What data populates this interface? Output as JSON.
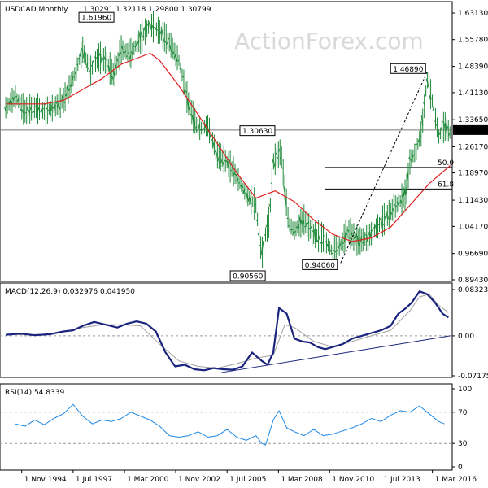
{
  "chart_data": [
    {
      "panel": "price",
      "type": "bar",
      "title": "USDCAD,Monthly",
      "ohlc_label": "1.30291 1.32118 1.29800 1.30799",
      "watermark": "ActionForex.com",
      "yticks": [
        "1.63130",
        "1.55780",
        "1.48390",
        "1.41130",
        "1.33650",
        "1.26170",
        "1.18970",
        "1.11430",
        "1.04170",
        "0.96690",
        "0.89430"
      ],
      "ylim": [
        0.8943,
        1.6313
      ],
      "current_price": "1.30799",
      "labels": [
        {
          "text": "1.61960",
          "date": 2000.0,
          "value": 1.6196
        },
        {
          "text": "1.30630",
          "date": 2007.9,
          "value": 1.3063
        },
        {
          "text": "0.90560",
          "date": 2007.4,
          "value": 0.9056
        },
        {
          "text": "0.94060",
          "date": 2011.4,
          "value": 0.9406
        },
        {
          "text": "1.46890",
          "date": 2015.9,
          "value": 1.4689
        }
      ],
      "fib_levels": [
        {
          "label": "50.0",
          "value": 1.2048
        },
        {
          "label": "61.8",
          "value": 1.145
        }
      ],
      "trendline": {
        "from": {
          "date": 2011.4,
          "value": 0.9406
        },
        "to": {
          "date": 2015.9,
          "value": 1.4689
        }
      },
      "price_series": {
        "x": [
          1994.0,
          1994.5,
          1995.0,
          1995.5,
          1996.0,
          1996.5,
          1997.0,
          1997.5,
          1998.0,
          1998.4,
          1998.8,
          1999.2,
          1999.6,
          2000.0,
          2000.5,
          2001.0,
          2001.5,
          2002.0,
          2002.5,
          2003.0,
          2003.5,
          2004.0,
          2004.5,
          2005.0,
          2005.5,
          2006.0,
          2006.5,
          2007.0,
          2007.3,
          2007.5,
          2007.7,
          2007.9,
          2008.3,
          2008.7,
          2009.0,
          2009.5,
          2010.0,
          2010.5,
          2011.0,
          2011.4,
          2011.8,
          2012.3,
          2012.8,
          2013.3,
          2013.8,
          2014.3,
          2014.8,
          2015.0,
          2015.3,
          2015.6,
          2015.9,
          2016.2,
          2016.5,
          2016.8,
          2017.1
        ],
        "y": [
          1.37,
          1.4,
          1.36,
          1.37,
          1.36,
          1.37,
          1.39,
          1.45,
          1.53,
          1.47,
          1.51,
          1.5,
          1.46,
          1.53,
          1.52,
          1.56,
          1.6,
          1.58,
          1.55,
          1.5,
          1.38,
          1.31,
          1.32,
          1.24,
          1.22,
          1.18,
          1.13,
          1.1,
          0.96,
          1.02,
          1.06,
          1.22,
          1.25,
          1.05,
          1.03,
          1.06,
          1.02,
          1.01,
          0.97,
          0.99,
          1.03,
          1.0,
          1.01,
          1.04,
          1.07,
          1.1,
          1.13,
          1.22,
          1.25,
          1.3,
          1.45,
          1.38,
          1.29,
          1.32,
          1.3
        ]
      },
      "ma_series": {
        "x": [
          1994.0,
          1995.0,
          1996.0,
          1997.0,
          1998.0,
          1999.0,
          2000.0,
          2001.0,
          2001.5,
          2002.0,
          2003.0,
          2004.0,
          2005.0,
          2006.0,
          2007.0,
          2008.0,
          2009.0,
          2010.0,
          2011.0,
          2012.0,
          2013.0,
          2014.0,
          2015.0,
          2016.0,
          2017.1
        ],
        "y": [
          1.38,
          1.38,
          1.38,
          1.39,
          1.42,
          1.45,
          1.49,
          1.51,
          1.52,
          1.5,
          1.43,
          1.35,
          1.27,
          1.19,
          1.12,
          1.14,
          1.11,
          1.06,
          1.02,
          1.0,
          1.01,
          1.04,
          1.1,
          1.16,
          1.21
        ]
      }
    },
    {
      "panel": "macd",
      "type": "line",
      "title": "MACD(12,26,9) 0.032976 0.041950",
      "yticks": [
        "0.083235",
        "0.00",
        "-0.071752"
      ],
      "ylim": [
        -0.071752,
        0.083235
      ],
      "series": [
        {
          "x": [
            1994.0,
            1994.8,
            1995.5,
            1996.3,
            1997.0,
            1997.5,
            1998.0,
            1998.6,
            1999.2,
            1999.8,
            2000.3,
            2000.8,
            2001.3,
            2001.8,
            2002.3,
            2002.8,
            2003.3,
            2003.8,
            2004.3,
            2004.8,
            2005.3,
            2005.8,
            2006.3,
            2006.8,
            2007.3,
            2007.6,
            2007.9,
            2008.2,
            2008.6,
            2009.0,
            2009.4,
            2009.8,
            2010.2,
            2010.6,
            2011.0,
            2011.5,
            2012.0,
            2012.5,
            2013.0,
            2013.5,
            2014.0,
            2014.4,
            2014.8,
            2015.1,
            2015.5,
            2015.9,
            2016.3,
            2016.7,
            2017.0
          ],
          "y": [
            0.002,
            0.004,
            0.001,
            0.003,
            0.008,
            0.01,
            0.018,
            0.025,
            0.02,
            0.015,
            0.022,
            0.026,
            0.022,
            0.008,
            -0.03,
            -0.055,
            -0.052,
            -0.06,
            -0.062,
            -0.058,
            -0.06,
            -0.061,
            -0.055,
            -0.03,
            -0.045,
            -0.052,
            -0.03,
            0.05,
            0.04,
            -0.005,
            -0.01,
            -0.012,
            -0.02,
            -0.024,
            -0.02,
            -0.015,
            -0.005,
            0.0,
            0.005,
            0.01,
            0.018,
            0.04,
            0.05,
            0.06,
            0.08,
            0.075,
            0.06,
            0.04,
            0.033
          ]
        },
        {
          "x": [
            1994.0,
            1995.0,
            1996.0,
            1997.0,
            1998.0,
            1999.0,
            2000.0,
            2001.0,
            2002.0,
            2003.0,
            2004.0,
            2005.0,
            2006.0,
            2007.0,
            2007.9,
            2008.5,
            2009.0,
            2010.0,
            2011.0,
            2012.0,
            2013.0,
            2014.0,
            2015.0,
            2015.5,
            2016.0,
            2016.5,
            2017.0
          ],
          "y": [
            0.003,
            0.002,
            0.003,
            0.007,
            0.015,
            0.02,
            0.02,
            0.018,
            -0.015,
            -0.045,
            -0.055,
            -0.058,
            -0.05,
            -0.04,
            -0.035,
            0.02,
            0.015,
            -0.01,
            -0.02,
            -0.01,
            0.0,
            0.01,
            0.045,
            0.07,
            0.075,
            0.055,
            0.042
          ]
        }
      ],
      "trendline": {
        "from": {
          "date": 2005.2,
          "value": -0.066
        },
        "to": {
          "date": 2017.1,
          "value": 0.0
        }
      }
    },
    {
      "panel": "rsi",
      "type": "line",
      "title": "RSI(14) 54.8339",
      "yticks": [
        "100",
        "70",
        "30",
        "0"
      ],
      "ylim": [
        0,
        100
      ],
      "levels": [
        70,
        30
      ],
      "series": [
        {
          "x": [
            1994.5,
            1995.0,
            1995.5,
            1996.0,
            1996.5,
            1997.0,
            1997.5,
            1998.0,
            1998.5,
            1999.0,
            1999.5,
            2000.0,
            2000.5,
            2001.0,
            2001.5,
            2002.0,
            2002.5,
            2003.0,
            2003.5,
            2004.0,
            2004.5,
            2005.0,
            2005.5,
            2006.0,
            2006.5,
            2007.0,
            2007.3,
            2007.5,
            2007.9,
            2008.2,
            2008.6,
            2009.0,
            2009.5,
            2010.0,
            2010.5,
            2011.0,
            2011.5,
            2012.0,
            2012.5,
            2013.0,
            2013.5,
            2014.0,
            2014.5,
            2015.0,
            2015.5,
            2016.0,
            2016.5,
            2016.8
          ],
          "y": [
            55,
            52,
            60,
            54,
            62,
            68,
            80,
            65,
            55,
            60,
            58,
            62,
            70,
            65,
            60,
            52,
            40,
            38,
            40,
            45,
            38,
            40,
            48,
            38,
            34,
            40,
            30,
            28,
            60,
            72,
            50,
            45,
            40,
            48,
            40,
            42,
            46,
            50,
            55,
            62,
            58,
            66,
            72,
            70,
            78,
            68,
            58,
            55
          ]
        }
      ]
    },
    {
      "panel": "xaxis",
      "type": "line",
      "xticks": [
        "1 Nov 1994",
        "1 Jul 1997",
        "1 Mar 2000",
        "1 Nov 2002",
        "1 Jul 2005",
        "1 Mar 2008",
        "1 Nov 2010",
        "1 Jul 2013",
        "1 Mar 2016"
      ],
      "xlim": [
        1993.7,
        2017.2
      ]
    }
  ]
}
